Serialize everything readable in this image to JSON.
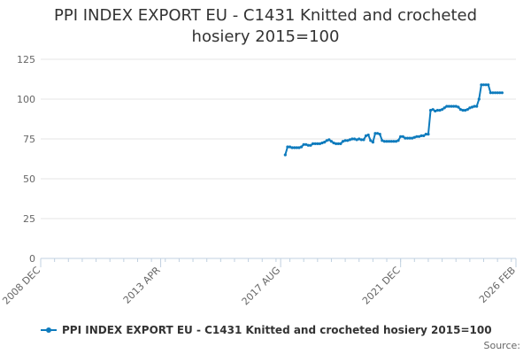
{
  "chart_data": {
    "type": "line",
    "title_lines": [
      "PPI INDEX EXPORT EU - C1431 Knitted and crocheted",
      "hosiery 2015=100"
    ],
    "xlabel": "",
    "ylabel": "",
    "ylim": [
      0,
      125
    ],
    "y_ticks": [
      0,
      25,
      50,
      75,
      100,
      125
    ],
    "x_range": [
      "2008-12",
      "2026-02"
    ],
    "x_ticks": [
      {
        "date": "2008-12",
        "label": "2008 DEC"
      },
      {
        "date": "2013-04",
        "label": "2013 APR"
      },
      {
        "date": "2017-08",
        "label": "2017 AUG"
      },
      {
        "date": "2021-12",
        "label": "2021 DEC"
      },
      {
        "date": "2026-02",
        "label": "2026 FEB"
      }
    ],
    "grid": true,
    "legend_position": "bottom",
    "series": [
      {
        "name": "PPI INDEX EXPORT EU - C1431 Knitted and crocheted hosiery 2015=100",
        "color": "#0e7bbd",
        "points": [
          [
            "2017-10",
            65
          ],
          [
            "2017-11",
            70
          ],
          [
            "2017-12",
            70
          ],
          [
            "2018-01",
            69.5
          ],
          [
            "2018-02",
            69.5
          ],
          [
            "2018-03",
            69.5
          ],
          [
            "2018-04",
            69.5
          ],
          [
            "2018-05",
            70
          ],
          [
            "2018-06",
            71.5
          ],
          [
            "2018-07",
            71.5
          ],
          [
            "2018-08",
            71
          ],
          [
            "2018-09",
            71
          ],
          [
            "2018-10",
            72
          ],
          [
            "2018-11",
            72
          ],
          [
            "2018-12",
            72
          ],
          [
            "2019-01",
            72
          ],
          [
            "2019-02",
            72.5
          ],
          [
            "2019-03",
            73
          ],
          [
            "2019-04",
            74
          ],
          [
            "2019-05",
            74.5
          ],
          [
            "2019-06",
            73.5
          ],
          [
            "2019-07",
            72.5
          ],
          [
            "2019-08",
            72
          ],
          [
            "2019-09",
            72
          ],
          [
            "2019-10",
            72
          ],
          [
            "2019-11",
            73.5
          ],
          [
            "2019-12",
            74
          ],
          [
            "2020-01",
            74
          ],
          [
            "2020-02",
            74.5
          ],
          [
            "2020-03",
            75
          ],
          [
            "2020-04",
            75
          ],
          [
            "2020-05",
            74.5
          ],
          [
            "2020-06",
            75
          ],
          [
            "2020-07",
            74.5
          ],
          [
            "2020-08",
            74.5
          ],
          [
            "2020-09",
            77
          ],
          [
            "2020-10",
            77.5
          ],
          [
            "2020-11",
            74
          ],
          [
            "2020-12",
            73
          ],
          [
            "2021-01",
            78.5
          ],
          [
            "2021-02",
            78.5
          ],
          [
            "2021-03",
            78
          ],
          [
            "2021-04",
            74
          ],
          [
            "2021-05",
            73.5
          ],
          [
            "2021-06",
            73.5
          ],
          [
            "2021-07",
            73.5
          ],
          [
            "2021-08",
            73.5
          ],
          [
            "2021-09",
            73.5
          ],
          [
            "2021-10",
            73.5
          ],
          [
            "2021-11",
            74
          ],
          [
            "2021-12",
            76.5
          ],
          [
            "2022-01",
            76.5
          ],
          [
            "2022-02",
            75.5
          ],
          [
            "2022-03",
            75.5
          ],
          [
            "2022-04",
            75.5
          ],
          [
            "2022-05",
            75.5
          ],
          [
            "2022-06",
            76
          ],
          [
            "2022-07",
            76.5
          ],
          [
            "2022-08",
            76.5
          ],
          [
            "2022-09",
            77
          ],
          [
            "2022-10",
            77
          ],
          [
            "2022-11",
            78
          ],
          [
            "2022-12",
            78
          ],
          [
            "2023-01",
            93
          ],
          [
            "2023-02",
            93.5
          ],
          [
            "2023-03",
            92.5
          ],
          [
            "2023-04",
            93
          ],
          [
            "2023-05",
            93
          ],
          [
            "2023-06",
            93.5
          ],
          [
            "2023-07",
            94.5
          ],
          [
            "2023-08",
            95.5
          ],
          [
            "2023-09",
            95.5
          ],
          [
            "2023-10",
            95.5
          ],
          [
            "2023-11",
            95.5
          ],
          [
            "2023-12",
            95.5
          ],
          [
            "2024-01",
            95
          ],
          [
            "2024-02",
            93.5
          ],
          [
            "2024-03",
            93
          ],
          [
            "2024-04",
            93
          ],
          [
            "2024-05",
            93.5
          ],
          [
            "2024-06",
            94.5
          ],
          [
            "2024-07",
            95
          ],
          [
            "2024-08",
            95.5
          ],
          [
            "2024-09",
            95.5
          ],
          [
            "2024-10",
            100
          ],
          [
            "2024-11",
            109
          ],
          [
            "2024-12",
            109
          ],
          [
            "2025-01",
            109
          ],
          [
            "2025-02",
            109
          ],
          [
            "2025-03",
            104
          ],
          [
            "2025-04",
            104
          ],
          [
            "2025-05",
            104
          ],
          [
            "2025-06",
            104
          ],
          [
            "2025-07",
            104
          ],
          [
            "2025-08",
            104
          ]
        ]
      }
    ],
    "source_label": "Source:"
  }
}
